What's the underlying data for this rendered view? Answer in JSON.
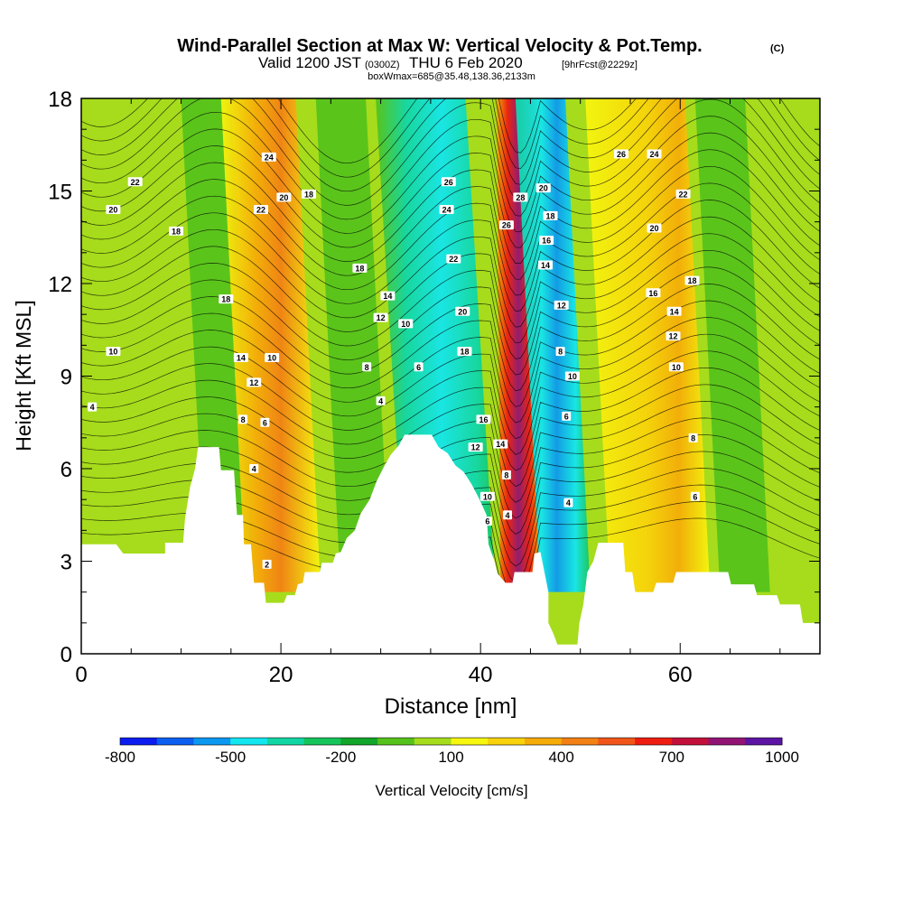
{
  "chart_data": {
    "type": "heatmap",
    "title": "Wind-Parallel Section at Max W: Vertical Velocity & Pot.Temp.",
    "title_mark": "(C)",
    "subtitle": {
      "prefix": "Valid 1200 JST",
      "utc": "(0300Z)",
      "date": "THU 6 Feb 2020",
      "forecast": "[9hrFcst@2229z]"
    },
    "subtitle2": "boxWmax=685@35.48,138.36,2133m",
    "xlabel": "Distance [nm]",
    "ylabel": "Height [Kft MSL]",
    "xlim": [
      0,
      74
    ],
    "ylim": [
      0,
      18
    ],
    "x_ticks": [
      "0",
      "20",
      "40",
      "60"
    ],
    "x_tick_values": [
      0,
      20,
      40,
      60
    ],
    "y_ticks": [
      "0",
      "3",
      "6",
      "9",
      "12",
      "15",
      "18"
    ],
    "y_tick_values": [
      0,
      3,
      6,
      9,
      12,
      15,
      18
    ],
    "colorbar": {
      "label": "Vertical Velocity [cm/s]",
      "tick_labels": [
        "-800",
        "-500",
        "-200",
        "100",
        "400",
        "700",
        "1000"
      ],
      "colors": [
        "#0a1cf0",
        "#0b5ef0",
        "#0b98f0",
        "#12e6ee",
        "#11d6a4",
        "#15c45a",
        "#12a62a",
        "#55c21b",
        "#a6dc1c",
        "#f6f60e",
        "#f8d20a",
        "#f6ac08",
        "#f38014",
        "#f1551a",
        "#ef1c10",
        "#c2103a",
        "#911474",
        "#5c14a2"
      ]
    },
    "velocity_bands": [
      {
        "name": "bg",
        "color": "#a6dc1c"
      },
      {
        "name": "d1",
        "x": [
          12.5,
          17.5
        ],
        "color": "#55c21b"
      },
      {
        "name": "u1",
        "x": [
          16.5,
          24
        ],
        "peak": 500,
        "color": "#f6ac08"
      },
      {
        "name": "d2",
        "x": [
          26,
          31
        ],
        "color": "#55c21b"
      },
      {
        "name": "d3",
        "x": [
          32.5,
          41.5
        ],
        "peak": -400,
        "color": "#12e6ee"
      },
      {
        "name": "u2",
        "x": [
          42,
          46
        ],
        "peak": 1000,
        "color": "#911474"
      },
      {
        "name": "d4",
        "x": [
          46,
          51
        ],
        "peak": -500,
        "color": "#0b98f0"
      },
      {
        "name": "u3",
        "x": [
          53,
          63
        ],
        "peak": 300,
        "color": "#f8d20a"
      },
      {
        "name": "d5",
        "x": [
          64,
          69
        ],
        "color": "#55c21b"
      }
    ],
    "terrain_kft": [
      [
        0,
        3.55
      ],
      [
        3.5,
        3.55
      ],
      [
        4.2,
        3.25
      ],
      [
        8.4,
        3.25
      ],
      [
        8.4,
        3.6
      ],
      [
        10.2,
        3.6
      ],
      [
        10.4,
        4.4
      ],
      [
        10.9,
        5.4
      ],
      [
        11.4,
        6.0
      ],
      [
        11.7,
        6.7
      ],
      [
        13.8,
        6.7
      ],
      [
        14.0,
        5.95
      ],
      [
        15.3,
        5.95
      ],
      [
        15.6,
        4.5
      ],
      [
        16.2,
        4.5
      ],
      [
        16.3,
        3.55
      ],
      [
        17.0,
        3.55
      ],
      [
        17.3,
        2.3
      ],
      [
        18.3,
        2.3
      ],
      [
        18.5,
        1.65
      ],
      [
        20.3,
        1.65
      ],
      [
        20.6,
        1.9
      ],
      [
        21.4,
        1.9
      ],
      [
        21.7,
        2.25
      ],
      [
        22.2,
        2.3
      ],
      [
        22.4,
        2.65
      ],
      [
        23.9,
        2.65
      ],
      [
        24.1,
        2.95
      ],
      [
        25.2,
        2.95
      ],
      [
        25.5,
        3.25
      ],
      [
        26.0,
        3.3
      ],
      [
        26.6,
        3.75
      ],
      [
        27.4,
        4.0
      ],
      [
        28.0,
        4.55
      ],
      [
        28.9,
        5.0
      ],
      [
        29.6,
        5.6
      ],
      [
        30.3,
        6.05
      ],
      [
        31.0,
        6.45
      ],
      [
        31.8,
        6.75
      ],
      [
        32.4,
        7.1
      ],
      [
        35.1,
        7.1
      ],
      [
        35.8,
        6.7
      ],
      [
        36.7,
        6.5
      ],
      [
        37.5,
        6.1
      ],
      [
        38.3,
        5.9
      ],
      [
        39.1,
        5.5
      ],
      [
        39.9,
        5.0
      ],
      [
        40.6,
        4.5
      ],
      [
        40.8,
        3.55
      ],
      [
        41.4,
        3.0
      ],
      [
        41.7,
        2.6
      ],
      [
        42.5,
        2.3
      ],
      [
        43.2,
        2.3
      ],
      [
        43.4,
        2.65
      ],
      [
        45.2,
        2.65
      ],
      [
        45.4,
        3.25
      ],
      [
        46.0,
        3.3
      ],
      [
        46.8,
        2.0
      ],
      [
        46.8,
        1.0
      ],
      [
        47.3,
        0.65
      ],
      [
        47.7,
        0.3
      ],
      [
        49.7,
        0.3
      ],
      [
        49.9,
        1.0
      ],
      [
        50.3,
        1.6
      ],
      [
        50.7,
        2.65
      ],
      [
        51.3,
        3.0
      ],
      [
        51.8,
        3.6
      ],
      [
        54.3,
        3.6
      ],
      [
        54.5,
        2.65
      ],
      [
        55.2,
        2.65
      ],
      [
        55.5,
        2.0
      ],
      [
        57.3,
        2.0
      ],
      [
        57.6,
        2.3
      ],
      [
        59.3,
        2.3
      ],
      [
        59.6,
        2.65
      ],
      [
        64.8,
        2.65
      ],
      [
        65.1,
        2.25
      ],
      [
        67.4,
        2.25
      ],
      [
        67.7,
        1.9
      ],
      [
        69.7,
        1.9
      ],
      [
        70.0,
        1.6
      ],
      [
        72.0,
        1.6
      ],
      [
        72.3,
        1.0
      ],
      [
        74,
        1.0
      ]
    ],
    "isentrope_labels": [
      {
        "text": "22",
        "x": 5.4,
        "y": 15.3
      },
      {
        "text": "20",
        "x": 3.2,
        "y": 14.4
      },
      {
        "text": "18",
        "x": 9.5,
        "y": 13.7
      },
      {
        "text": "10",
        "x": 3.2,
        "y": 9.8
      },
      {
        "text": "4",
        "x": 1.1,
        "y": 8.0
      },
      {
        "text": "18",
        "x": 14.5,
        "y": 11.5
      },
      {
        "text": "14",
        "x": 16.0,
        "y": 9.6
      },
      {
        "text": "12",
        "x": 17.3,
        "y": 8.8
      },
      {
        "text": "8",
        "x": 16.2,
        "y": 7.6
      },
      {
        "text": "6",
        "x": 18.4,
        "y": 7.5
      },
      {
        "text": "4",
        "x": 17.3,
        "y": 6.0
      },
      {
        "text": "2",
        "x": 18.6,
        "y": 2.9
      },
      {
        "text": "24",
        "x": 18.8,
        "y": 16.1
      },
      {
        "text": "22",
        "x": 18.0,
        "y": 14.4
      },
      {
        "text": "20",
        "x": 20.3,
        "y": 14.8
      },
      {
        "text": "18",
        "x": 22.8,
        "y": 14.9
      },
      {
        "text": "10",
        "x": 19.1,
        "y": 9.6
      },
      {
        "text": "18",
        "x": 27.9,
        "y": 12.5
      },
      {
        "text": "14",
        "x": 30.7,
        "y": 11.6
      },
      {
        "text": "12",
        "x": 30.0,
        "y": 10.9
      },
      {
        "text": "10",
        "x": 32.5,
        "y": 10.7
      },
      {
        "text": "8",
        "x": 28.6,
        "y": 9.3
      },
      {
        "text": "6",
        "x": 33.8,
        "y": 9.3
      },
      {
        "text": "4",
        "x": 30.0,
        "y": 8.2
      },
      {
        "text": "26",
        "x": 36.8,
        "y": 15.3
      },
      {
        "text": "24",
        "x": 36.6,
        "y": 14.4
      },
      {
        "text": "22",
        "x": 37.3,
        "y": 12.8
      },
      {
        "text": "20",
        "x": 38.2,
        "y": 11.1
      },
      {
        "text": "18",
        "x": 38.4,
        "y": 9.8
      },
      {
        "text": "16",
        "x": 40.3,
        "y": 7.6
      },
      {
        "text": "12",
        "x": 39.5,
        "y": 6.7
      },
      {
        "text": "14",
        "x": 42.0,
        "y": 6.8
      },
      {
        "text": "8",
        "x": 42.6,
        "y": 5.8
      },
      {
        "text": "10",
        "x": 40.7,
        "y": 5.1
      },
      {
        "text": "6",
        "x": 40.7,
        "y": 4.3
      },
      {
        "text": "4",
        "x": 42.7,
        "y": 4.5
      },
      {
        "text": "28",
        "x": 44.0,
        "y": 14.8
      },
      {
        "text": "26",
        "x": 42.6,
        "y": 13.9
      },
      {
        "text": "20",
        "x": 46.3,
        "y": 15.1
      },
      {
        "text": "18",
        "x": 47.0,
        "y": 14.2
      },
      {
        "text": "16",
        "x": 46.6,
        "y": 13.4
      },
      {
        "text": "14",
        "x": 46.5,
        "y": 12.6
      },
      {
        "text": "12",
        "x": 48.1,
        "y": 11.3
      },
      {
        "text": "8",
        "x": 48.0,
        "y": 9.8
      },
      {
        "text": "10",
        "x": 49.2,
        "y": 9.0
      },
      {
        "text": "6",
        "x": 48.6,
        "y": 7.7
      },
      {
        "text": "4",
        "x": 48.8,
        "y": 4.9
      },
      {
        "text": "26",
        "x": 54.1,
        "y": 16.2
      },
      {
        "text": "24",
        "x": 57.4,
        "y": 16.2
      },
      {
        "text": "22",
        "x": 60.3,
        "y": 14.9
      },
      {
        "text": "20",
        "x": 57.4,
        "y": 13.8
      },
      {
        "text": "18",
        "x": 61.2,
        "y": 12.1
      },
      {
        "text": "16",
        "x": 57.3,
        "y": 11.7
      },
      {
        "text": "14",
        "x": 59.4,
        "y": 11.1
      },
      {
        "text": "12",
        "x": 59.3,
        "y": 10.3
      },
      {
        "text": "10",
        "x": 59.6,
        "y": 9.3
      },
      {
        "text": "8",
        "x": 61.3,
        "y": 7.0
      },
      {
        "text": "6",
        "x": 61.5,
        "y": 5.1
      }
    ]
  }
}
